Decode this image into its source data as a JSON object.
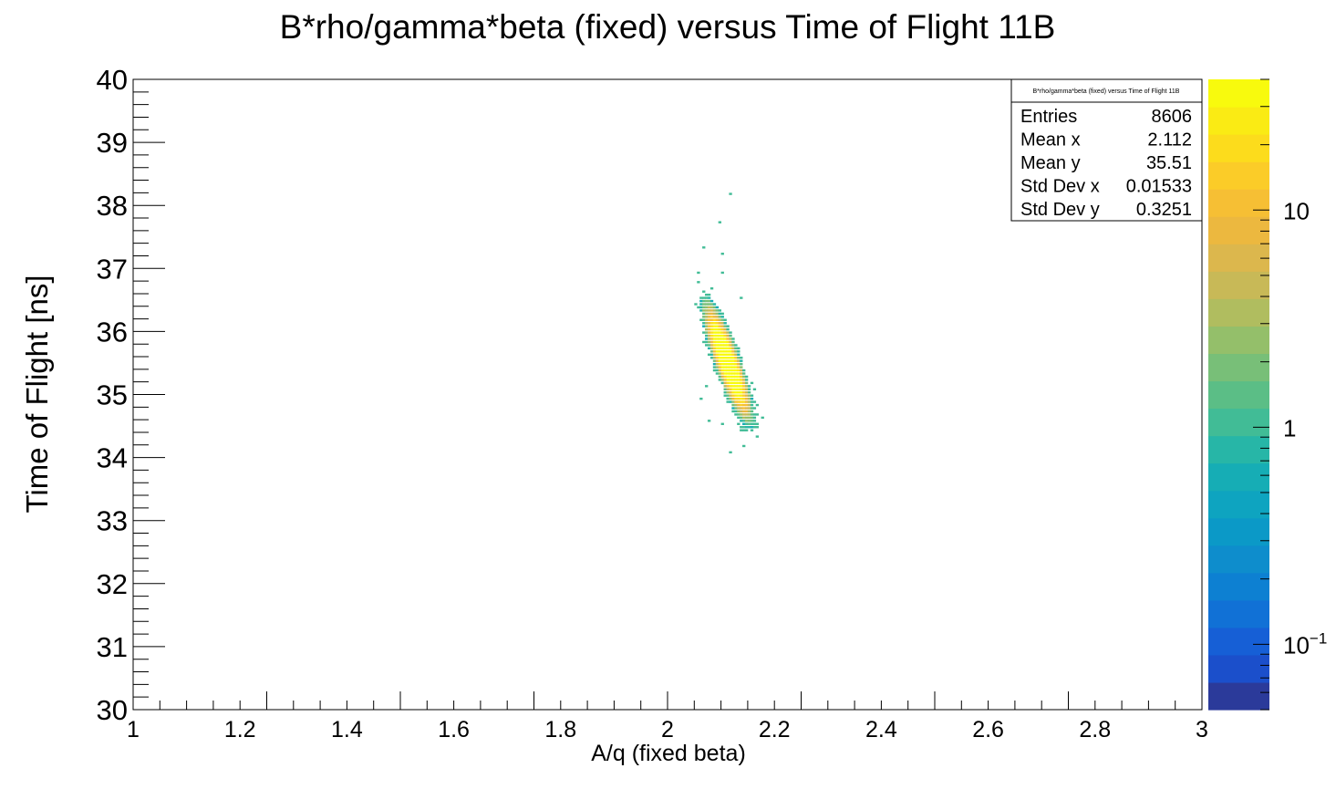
{
  "chart_data": {
    "type": "heatmap",
    "title": "B*rho/gamma*beta (fixed) versus Time of Flight 11B",
    "xlabel": "A/q (fixed beta)",
    "ylabel": "Time of Flight [ns]",
    "xlim": [
      1,
      3
    ],
    "ylim": [
      30,
      40
    ],
    "x_ticks": [
      "1",
      "1.2",
      "1.4",
      "1.6",
      "1.8",
      "2",
      "2.2",
      "2.4",
      "2.6",
      "2.8",
      "3"
    ],
    "y_ticks": [
      "30",
      "31",
      "32",
      "33",
      "34",
      "35",
      "36",
      "37",
      "38",
      "39",
      "40"
    ],
    "colorbar": {
      "scale": "log",
      "range": [
        0.05,
        40
      ],
      "labels": [
        {
          "value": 0.1,
          "base": "10",
          "exponent": "−1"
        },
        {
          "value": 1,
          "base": "1",
          "exponent": ""
        },
        {
          "value": 10,
          "base": "10",
          "exponent": ""
        }
      ],
      "palette": [
        "#2b3a9a",
        "#1b4fcb",
        "#165fd6",
        "#1171d6",
        "#0d80d2",
        "#0e8dcc",
        "#0b99c7",
        "#0ea4c0",
        "#16adb5",
        "#27b6a7",
        "#41bc96",
        "#5bbe86",
        "#78bf78",
        "#94bf6a",
        "#b0bd5f",
        "#c8b957",
        "#dcb74d",
        "#ecb83f",
        "#f6bf34",
        "#fbcc28",
        "#fcdc1c",
        "#faeb14",
        "#f8fa0d"
      ]
    },
    "stats_box": {
      "title": "B*rho/gamma*beta (fixed) versus Time of Flight 11B",
      "rows": [
        {
          "label": "Entries",
          "value": "8606"
        },
        {
          "label": "Mean x",
          "value": "2.112"
        },
        {
          "label": "Mean y",
          "value": "35.51"
        },
        {
          "label": "Std Dev x",
          "value": "0.01533"
        },
        {
          "label": "Std Dev y",
          "value": "0.3251"
        }
      ]
    },
    "distribution": {
      "entries": 8606,
      "mean_x": 2.112,
      "mean_y": 35.51,
      "std_x": 0.01533,
      "std_y": 0.3251,
      "correlation": -0.85
    },
    "outliers": [
      {
        "x": 2.115,
        "y": 38.2
      },
      {
        "x": 2.095,
        "y": 37.75
      },
      {
        "x": 2.065,
        "y": 37.35
      },
      {
        "x": 2.1,
        "y": 37.25
      },
      {
        "x": 2.1,
        "y": 36.95
      },
      {
        "x": 2.08,
        "y": 36.7
      },
      {
        "x": 2.135,
        "y": 36.55
      },
      {
        "x": 2.07,
        "y": 35.15
      },
      {
        "x": 2.06,
        "y": 34.95
      },
      {
        "x": 2.16,
        "y": 35.1
      },
      {
        "x": 2.075,
        "y": 34.6
      },
      {
        "x": 2.1,
        "y": 34.55
      },
      {
        "x": 2.145,
        "y": 34.55
      },
      {
        "x": 2.14,
        "y": 34.2
      },
      {
        "x": 2.115,
        "y": 34.1
      }
    ]
  }
}
